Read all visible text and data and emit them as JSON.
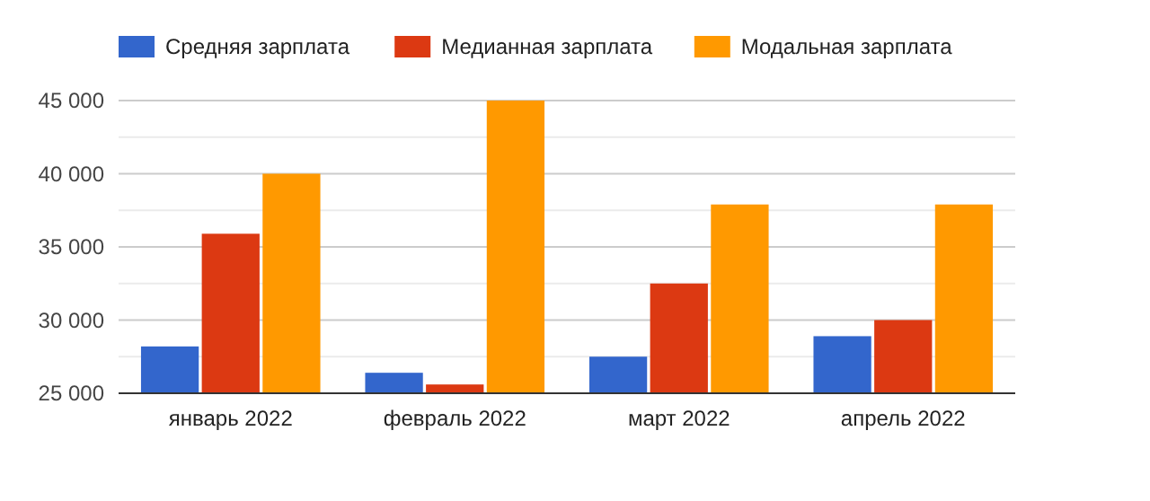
{
  "chart_data": {
    "type": "bar",
    "categories": [
      "январь 2022",
      "февраль 2022",
      "март 2022",
      "апрель 2022"
    ],
    "series": [
      {
        "name": "Средняя зарплата",
        "color": "#3366cc",
        "values": [
          28200,
          26400,
          27500,
          28900
        ]
      },
      {
        "name": "Медианная зарплата",
        "color": "#dc3912",
        "values": [
          35900,
          25600,
          32500,
          30000
        ]
      },
      {
        "name": "Модальная зарплата",
        "color": "#ff9900",
        "values": [
          40000,
          45000,
          37900,
          37900
        ]
      }
    ],
    "ylim": [
      25000,
      45000
    ],
    "yticks": [
      {
        "value": 25000,
        "label": "25 000"
      },
      {
        "value": 27500,
        "label": null
      },
      {
        "value": 30000,
        "label": "30 000"
      },
      {
        "value": 32500,
        "label": null
      },
      {
        "value": 35000,
        "label": "35 000"
      },
      {
        "value": 37500,
        "label": null
      },
      {
        "value": 40000,
        "label": "40 000"
      },
      {
        "value": 42500,
        "label": null
      },
      {
        "value": 45000,
        "label": "45 000"
      }
    ],
    "grid": true,
    "legend": "top left"
  }
}
